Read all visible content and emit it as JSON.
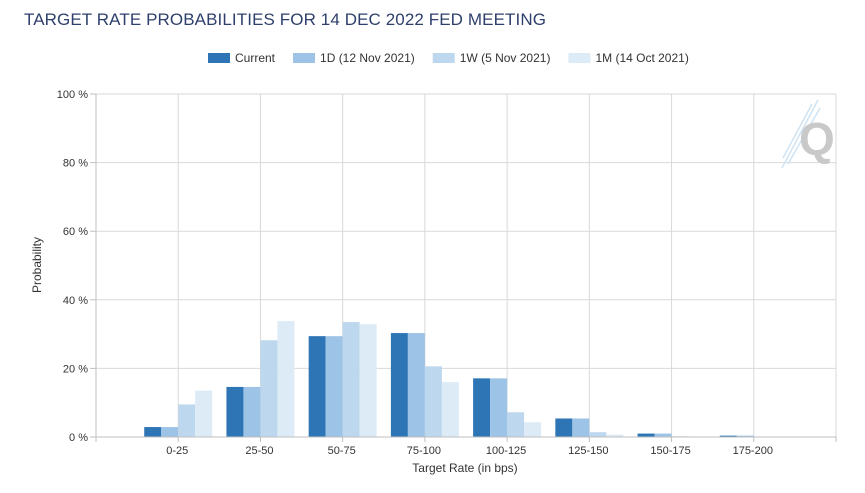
{
  "chart_data": {
    "type": "bar",
    "title": "TARGET RATE PROBABILITIES FOR 14 DEC 2022 FED MEETING",
    "xlabel": "Target Rate (in bps)",
    "ylabel": "Probability",
    "ylim": [
      0,
      100
    ],
    "yticks": [
      {
        "value": 0,
        "label": "0 %"
      },
      {
        "value": 20,
        "label": "20 %"
      },
      {
        "value": 40,
        "label": "40 %"
      },
      {
        "value": 60,
        "label": "60 %"
      },
      {
        "value": 80,
        "label": "80 %"
      },
      {
        "value": 100,
        "label": "100 %"
      }
    ],
    "grid": true,
    "legend_position": "top-center",
    "categories": [
      "0-25",
      "25-50",
      "50-75",
      "75-100",
      "100-125",
      "125-150",
      "150-175",
      "175-200"
    ],
    "series": [
      {
        "name": "Current",
        "color": "#2e75b6",
        "values": [
          2.9,
          14.6,
          29.4,
          30.3,
          17.1,
          5.4,
          1.0,
          0.4
        ]
      },
      {
        "name": "1D (12 Nov 2021)",
        "color": "#9dc3e6",
        "values": [
          2.9,
          14.6,
          29.4,
          30.3,
          17.1,
          5.4,
          1.0,
          0.4
        ]
      },
      {
        "name": "1W (5 Nov 2021)",
        "color": "#bdd7ee",
        "values": [
          9.5,
          28.2,
          33.5,
          20.6,
          7.2,
          1.4,
          0.2,
          0.0
        ]
      },
      {
        "name": "1M (14 Oct 2021)",
        "color": "#ddebf7",
        "values": [
          13.5,
          33.8,
          32.9,
          16.0,
          4.3,
          0.7,
          0.1,
          0.0
        ]
      }
    ]
  },
  "colors": {
    "grid": "#d9d9d9",
    "axis": "#bfbfbf",
    "title": "#2e3f6b",
    "logo_letter": "#c9c9c9",
    "logo_lines": "#cfe3f3"
  },
  "logo": {
    "icon": "q-logo-icon",
    "text": "Q"
  }
}
